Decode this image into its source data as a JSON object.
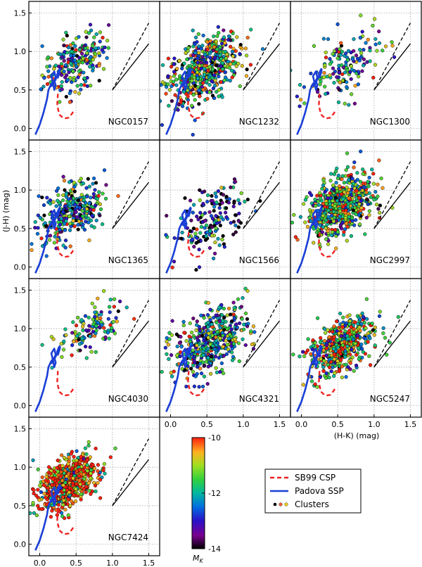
{
  "figure": {
    "ylabel": "(J-H) (mag)",
    "xlabel": "(H-K) (mag)",
    "xlim": [
      -0.15,
      1.65
    ],
    "ylim": [
      -0.15,
      1.65
    ],
    "xticks": [
      "0.0",
      "0.5",
      "1.0",
      "1.5"
    ],
    "yticks": [
      "0.0",
      "0.5",
      "1.0",
      "1.5"
    ]
  },
  "colorbar": {
    "label": "M_K",
    "label_main": "M",
    "label_sub": "K",
    "range": [
      -14,
      -10
    ],
    "ticks": [
      "-10",
      "-12",
      "-14"
    ]
  },
  "legend": {
    "items": [
      {
        "label": "SB99 CSP",
        "style": "dashed",
        "color": "#ee2222"
      },
      {
        "label": "Padova SSP",
        "style": "solid",
        "color": "#1a3fd6"
      },
      {
        "label": "Clusters",
        "style": "points",
        "color": "#000000"
      }
    ]
  },
  "chart_data": {
    "type": "scatter",
    "panels": [
      {
        "name": "NGC0157",
        "n_clusters": 230,
        "center": [
          0.5,
          0.85
        ],
        "spread": [
          0.22,
          0.18
        ],
        "mk_mean": -12.0
      },
      {
        "name": "NGC1232",
        "n_clusters": 560,
        "center": [
          0.45,
          0.78
        ],
        "spread": [
          0.25,
          0.2
        ],
        "mk_mean": -11.8
      },
      {
        "name": "NGC1300",
        "n_clusters": 160,
        "center": [
          0.6,
          0.8
        ],
        "spread": [
          0.25,
          0.2
        ],
        "mk_mean": -12.2
      },
      {
        "name": "NGC1365",
        "n_clusters": 300,
        "center": [
          0.45,
          0.72
        ],
        "spread": [
          0.22,
          0.18
        ],
        "mk_mean": -12.3
      },
      {
        "name": "NGC1566",
        "n_clusters": 170,
        "center": [
          0.55,
          0.6
        ],
        "spread": [
          0.25,
          0.2
        ],
        "mk_mean": -13.0
      },
      {
        "name": "NGC2997",
        "n_clusters": 650,
        "center": [
          0.55,
          0.8
        ],
        "spread": [
          0.22,
          0.18
        ],
        "mk_mean": -11.5
      },
      {
        "name": "NGC4030",
        "n_clusters": 130,
        "center": [
          0.7,
          1.0
        ],
        "spread": [
          0.22,
          0.15
        ],
        "mk_mean": -12.0
      },
      {
        "name": "NGC4321",
        "n_clusters": 450,
        "center": [
          0.55,
          0.85
        ],
        "spread": [
          0.25,
          0.2
        ],
        "mk_mean": -12.1
      },
      {
        "name": "NGC5247",
        "n_clusters": 520,
        "center": [
          0.55,
          0.78
        ],
        "spread": [
          0.22,
          0.17
        ],
        "mk_mean": -11.3
      },
      {
        "name": "NGC7424",
        "n_clusters": 700,
        "center": [
          0.38,
          0.8
        ],
        "spread": [
          0.2,
          0.15
        ],
        "mk_mean": -10.3
      }
    ],
    "models": {
      "padova_ssp": {
        "color": "#1a3fd6",
        "x": [
          -0.06,
          0.0,
          0.05,
          0.1,
          0.12,
          0.16,
          0.2,
          0.22,
          0.2,
          0.18,
          0.16,
          0.2,
          0.22,
          0.18,
          0.16,
          0.2,
          0.25,
          0.28,
          0.27,
          0.25,
          0.24,
          0.26,
          0.28
        ],
        "y": [
          -0.08,
          0.05,
          0.2,
          0.38,
          0.5,
          0.58,
          0.62,
          0.56,
          0.5,
          0.6,
          0.68,
          0.74,
          0.66,
          0.58,
          0.55,
          0.6,
          0.7,
          0.76,
          0.72,
          0.66,
          0.7,
          0.75,
          0.78
        ]
      },
      "sb99_csp": {
        "color": "#ee2222",
        "x": [
          0.25,
          0.24,
          0.27,
          0.33,
          0.4,
          0.45,
          0.47
        ],
        "y": [
          0.45,
          0.3,
          0.18,
          0.13,
          0.14,
          0.2,
          0.24
        ]
      },
      "reddening_vectors": [
        {
          "style": "dashed",
          "from": [
            1.0,
            0.5
          ],
          "to": [
            1.5,
            1.37
          ]
        },
        {
          "style": "solid",
          "from": [
            1.0,
            0.5
          ],
          "to": [
            1.5,
            1.1
          ]
        }
      ]
    }
  }
}
